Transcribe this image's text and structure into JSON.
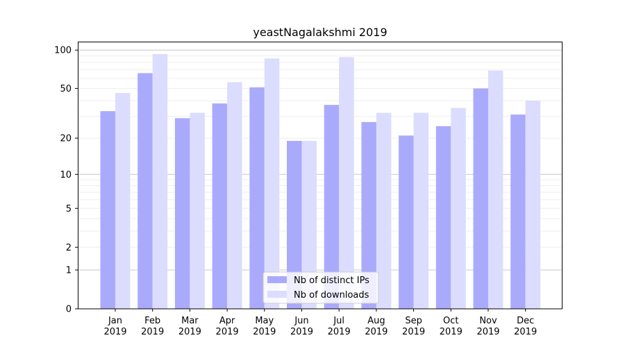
{
  "chart_data": {
    "type": "bar",
    "title": "yeastNagalakshmi 2019",
    "xlabel": "",
    "ylabel": "",
    "y_scale": "log10(1+y)",
    "ylim": [
      0,
      110
    ],
    "yticks": [
      0,
      1,
      2,
      5,
      10,
      20,
      50,
      100
    ],
    "grid": true,
    "legend_position": "bottom-center",
    "categories": [
      "Jan\n2019",
      "Feb\n2019",
      "Mar\n2019",
      "Apr\n2019",
      "May\n2019",
      "Jun\n2019",
      "Jul\n2019",
      "Aug\n2019",
      "Sep\n2019",
      "Oct\n2019",
      "Nov\n2019",
      "Dec\n2019"
    ],
    "series": [
      {
        "name": "Nb of distinct IPs",
        "color": "#aaaafd",
        "values": [
          33,
          66,
          29,
          38,
          51,
          19,
          37,
          27,
          21,
          25,
          50,
          31
        ]
      },
      {
        "name": "Nb of downloads",
        "color": "#dcdcfe",
        "values": [
          46,
          93,
          32,
          56,
          86,
          19,
          88,
          32,
          32,
          35,
          69,
          40
        ]
      }
    ]
  }
}
